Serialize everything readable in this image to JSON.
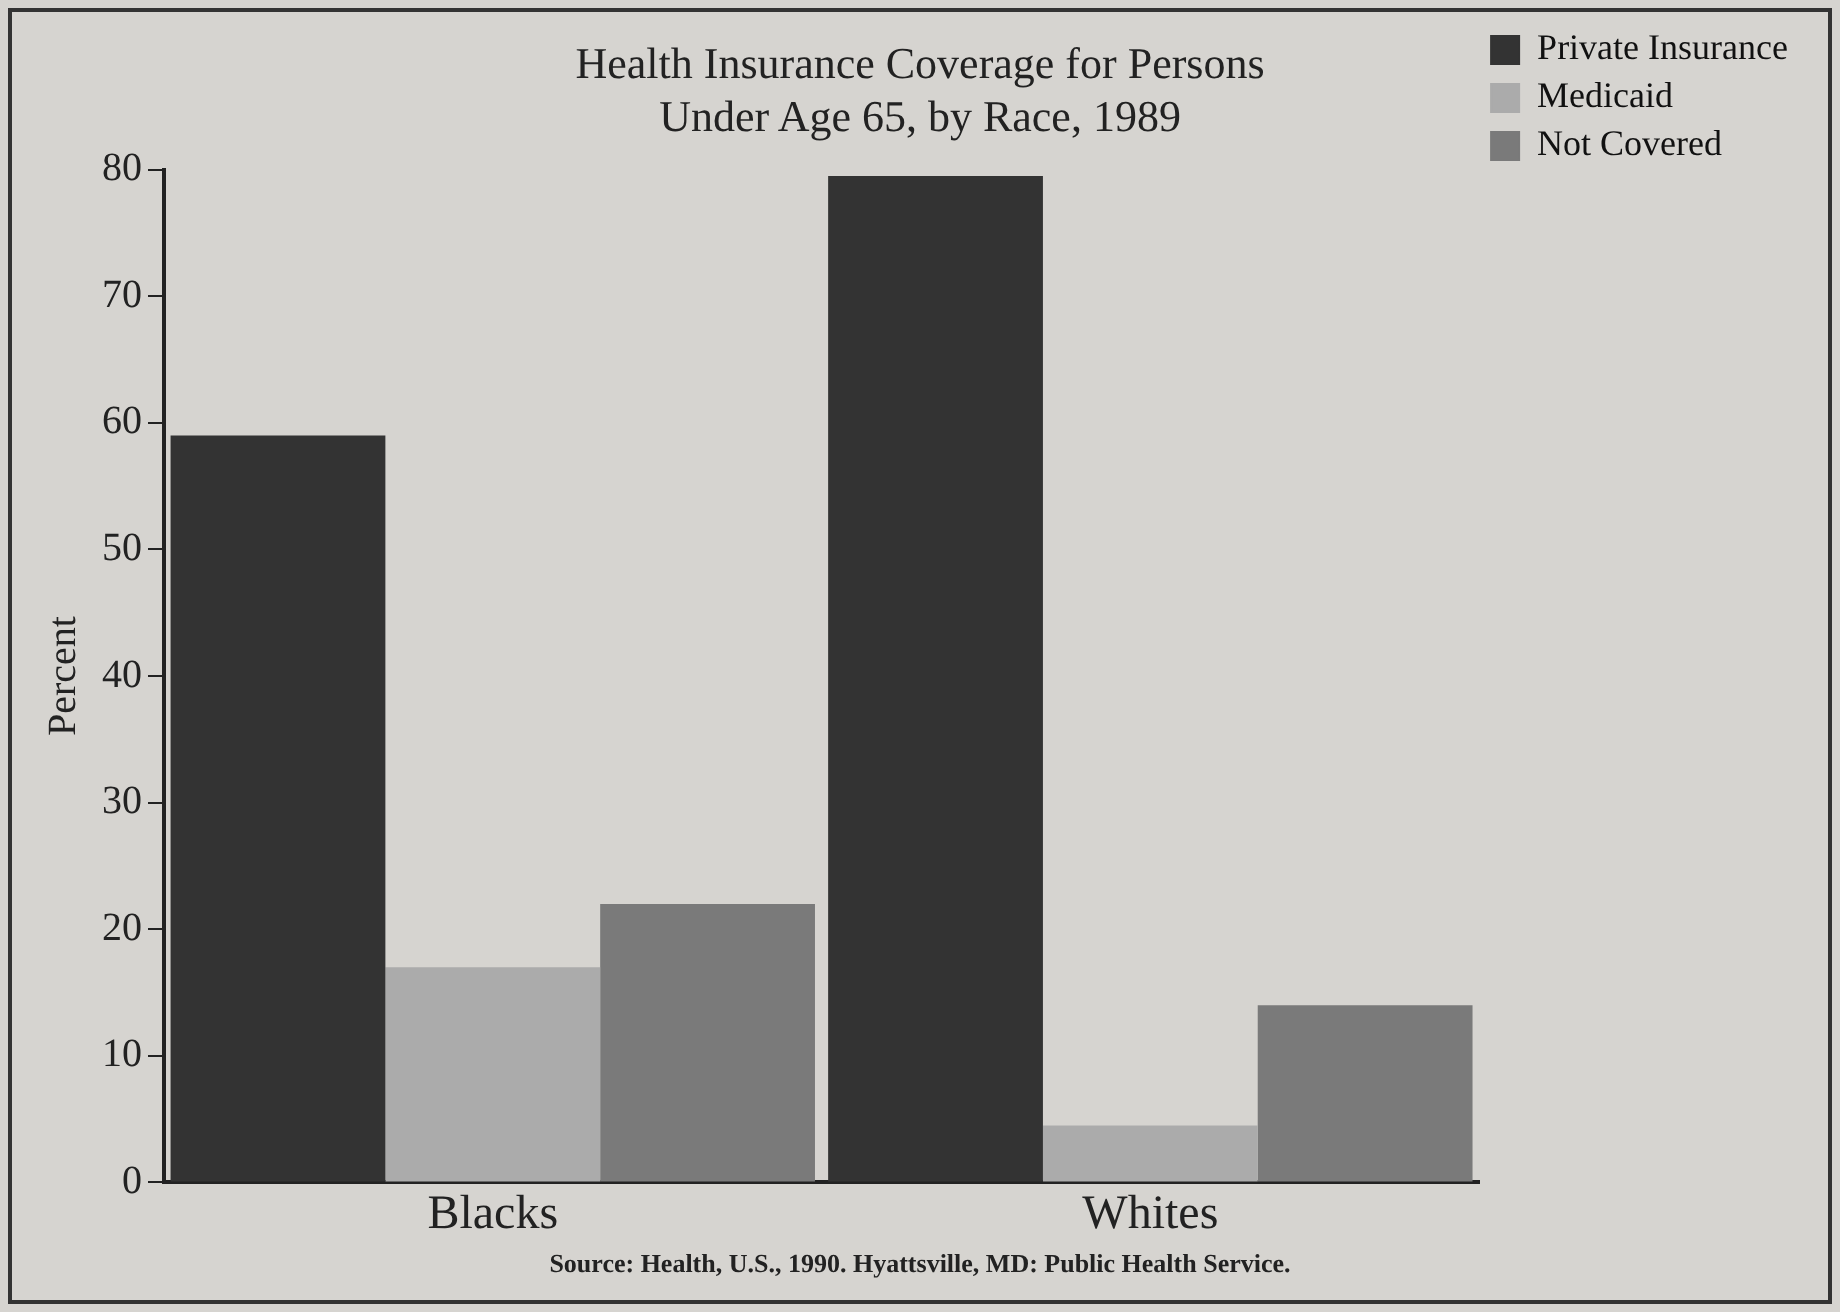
{
  "chart_data": {
    "type": "bar",
    "title": [
      "Health Insurance Coverage for Persons",
      "Under Age 65, by Race, 1989"
    ],
    "ylabel": "Percent",
    "categories": [
      "Blacks",
      "Whites"
    ],
    "series": [
      {
        "name": "Private Insurance",
        "color": "#333333",
        "values": [
          59,
          79.5
        ]
      },
      {
        "name": "Medicaid",
        "color": "#ababab",
        "values": [
          17,
          4.5
        ]
      },
      {
        "name": "Not Covered",
        "color": "#7a7a7a",
        "values": [
          22,
          14
        ]
      }
    ],
    "ylim": [
      0,
      80
    ],
    "yticks": [
      0,
      10,
      20,
      30,
      40,
      50,
      60,
      70,
      80
    ],
    "grid": false,
    "legend": "right",
    "annotations": [
      "Source: Health, U.S., 1990. Hyattsville, MD: Public Health Service."
    ]
  }
}
